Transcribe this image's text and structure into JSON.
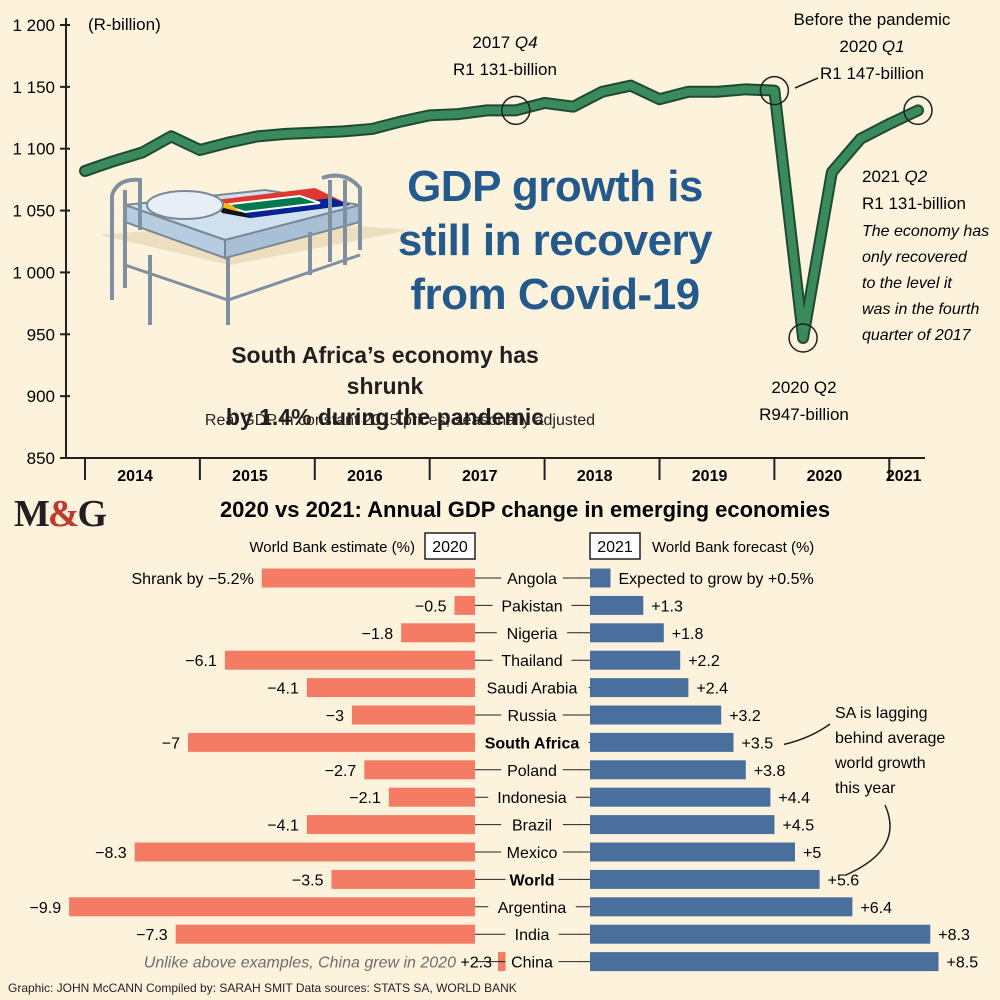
{
  "headline": [
    "GDP growth is",
    "still in recovery",
    "from Covid-19"
  ],
  "subheadline": [
    "South Africa’s economy has shrunk",
    "by 1.4% during the pandemic"
  ],
  "subnote": "Real GDP in constant 2015 prices, seasonally adjusted",
  "logo": {
    "left": "M",
    "amp": "&",
    "right": "G"
  },
  "footer": "Graphic: JOHN McCANN  Compiled by: SARAH SMIT  Data sources: STATS SA, WORLD BANK",
  "colors": {
    "line": "#3b8a5d",
    "line_outline": "#1e4a32",
    "negative_bar": "#f47c65",
    "positive_bar": "#4a6f9d",
    "headline": "#24598c",
    "background": "#fdf3dd"
  },
  "chart_data": [
    {
      "type": "line",
      "title": "GDP growth is still in recovery from Covid-19",
      "ylabel": "(R-billion)",
      "ylim": [
        850,
        1200
      ],
      "yticks": [
        "1 200",
        "1 150",
        "1 100",
        "1 050",
        "1 000",
        "950",
        "900",
        "850"
      ],
      "ytick_values": [
        1200,
        1150,
        1100,
        1050,
        1000,
        950,
        900,
        850
      ],
      "xtick_labels": [
        "2014",
        "2015",
        "2016",
        "2017",
        "2018",
        "2019",
        "2020",
        "2021"
      ],
      "x": [
        "2014 Q1",
        "2014 Q2",
        "2014 Q3",
        "2014 Q4",
        "2015 Q1",
        "2015 Q2",
        "2015 Q3",
        "2015 Q4",
        "2016 Q1",
        "2016 Q2",
        "2016 Q3",
        "2016 Q4",
        "2017 Q1",
        "2017 Q2",
        "2017 Q3",
        "2017 Q4",
        "2018 Q1",
        "2018 Q2",
        "2018 Q3",
        "2018 Q4",
        "2019 Q1",
        "2019 Q2",
        "2019 Q3",
        "2019 Q4",
        "2020 Q1",
        "2020 Q2",
        "2020 Q3",
        "2020 Q4",
        "2021 Q1",
        "2021 Q2"
      ],
      "values": [
        1082,
        1090,
        1097,
        1110,
        1099,
        1105,
        1110,
        1112,
        1113,
        1114,
        1116,
        1122,
        1127,
        1128,
        1131,
        1131,
        1137,
        1134,
        1146,
        1151,
        1140,
        1146,
        1146,
        1148,
        1147,
        947,
        1081,
        1108,
        1120,
        1131
      ],
      "annotations": [
        {
          "point": "2017 Q4",
          "lines": [
            {
              "text": "2017 ",
              "italic": "Q4"
            },
            {
              "text": "R1 131-billion"
            }
          ]
        },
        {
          "point": "2020 Q1",
          "lines": [
            {
              "text": "Before the pandemic"
            },
            {
              "text": "2020 ",
              "italic": "Q1"
            },
            {
              "text": "R1 147-billion"
            }
          ]
        },
        {
          "point": "2020 Q2",
          "lines": [
            {
              "text": "2020 Q2"
            },
            {
              "text": "R947-billion"
            }
          ]
        },
        {
          "point": "2021 Q2",
          "lines": [
            {
              "text": "2021 ",
              "italic": "Q2"
            },
            {
              "text": "R1 131-billion"
            }
          ],
          "note": [
            "The economy has",
            "only recovered",
            "to the level it",
            "was in the fourth",
            "quarter of 2017"
          ]
        }
      ]
    },
    {
      "type": "bar",
      "title": "2020 vs 2021: Annual GDP change in emerging economies",
      "left_header": "World Bank estimate (%)",
      "left_year": "2020",
      "right_year": "2021",
      "right_header": "World Bank forecast (%)",
      "categories": [
        "Angola",
        "Pakistan",
        "Nigeria",
        "Thailand",
        "Saudi Arabia",
        "Russia",
        "South Africa",
        "Poland",
        "Indonesia",
        "Brazil",
        "Mexico",
        "World",
        "Argentina",
        "India",
        "China"
      ],
      "bold_categories": [
        "South Africa",
        "World"
      ],
      "series": [
        {
          "name": "2020",
          "values": [
            -5.2,
            -0.5,
            -1.8,
            -6.1,
            -4.1,
            -3,
            -7,
            -2.7,
            -2.1,
            -4.1,
            -8.3,
            -3.5,
            -9.9,
            -7.3,
            2.3
          ],
          "labels": [
            "Shrank by −5.2%",
            "−0.5",
            "−1.8",
            "−6.1",
            "−4.1",
            "−3",
            "−7",
            "−2.7",
            "−2.1",
            "−4.1",
            "−8.3",
            "−3.5",
            "−9.9",
            "−7.3",
            "+2.3"
          ]
        },
        {
          "name": "2021",
          "values": [
            0.5,
            1.3,
            1.8,
            2.2,
            2.4,
            3.2,
            3.5,
            3.8,
            4.4,
            4.5,
            5,
            5.6,
            6.4,
            8.3,
            8.5
          ],
          "labels": [
            "Expected to grow by +0.5%",
            "+1.3",
            "+1.8",
            "+2.2",
            "+2.4",
            "+3.2",
            "+3.5",
            "+3.8",
            "+4.4",
            "+4.5",
            "+5",
            "+5.6",
            "+6.4",
            "+8.3",
            "+8.5"
          ]
        }
      ],
      "china_note": "Unlike above examples, China grew in 2020",
      "sa_note": [
        "SA is lagging",
        "behind average",
        "world growth",
        "this year"
      ]
    }
  ]
}
